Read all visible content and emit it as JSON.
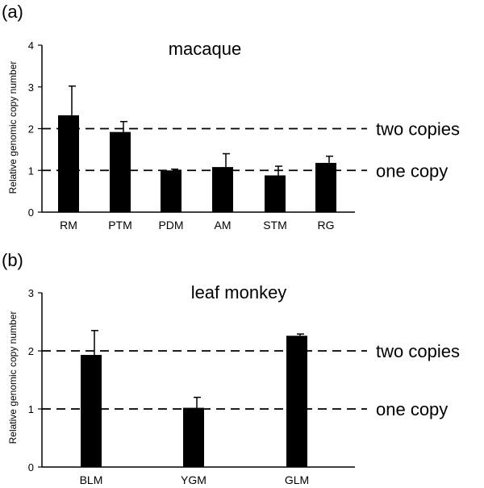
{
  "chart_data": [
    {
      "type": "bar",
      "panel_label": "(a)",
      "title": "macaque",
      "ylabel": "Relative genomic copy number",
      "xlabel": "",
      "categories": [
        "RM",
        "PTM",
        "PDM",
        "AM",
        "STM",
        "RG"
      ],
      "values": [
        2.32,
        1.92,
        1.0,
        1.08,
        0.88,
        1.18
      ],
      "errors": [
        0.7,
        0.25,
        0.03,
        0.32,
        0.22,
        0.16
      ],
      "ylim": [
        0,
        4
      ],
      "yticks": [
        "0",
        "1",
        "2",
        "3",
        "4"
      ],
      "reference_lines": [
        {
          "value": 2,
          "label": "two copies"
        },
        {
          "value": 1,
          "label": "one copy"
        }
      ],
      "grid": false,
      "bar_color": "#000000"
    },
    {
      "type": "bar",
      "panel_label": "(b)",
      "title": "leaf monkey",
      "ylabel": "Relative genomic copy number",
      "xlabel": "",
      "categories": [
        "BLM",
        "YGM",
        "GLM"
      ],
      "values": [
        1.93,
        1.02,
        2.26
      ],
      "errors": [
        0.42,
        0.18,
        0.03
      ],
      "ylim": [
        0,
        3
      ],
      "yticks": [
        "0",
        "1",
        "2",
        "3"
      ],
      "reference_lines": [
        {
          "value": 2,
          "label": "two copies"
        },
        {
          "value": 1,
          "label": "one copy"
        }
      ],
      "grid": false,
      "bar_color": "#000000"
    }
  ]
}
